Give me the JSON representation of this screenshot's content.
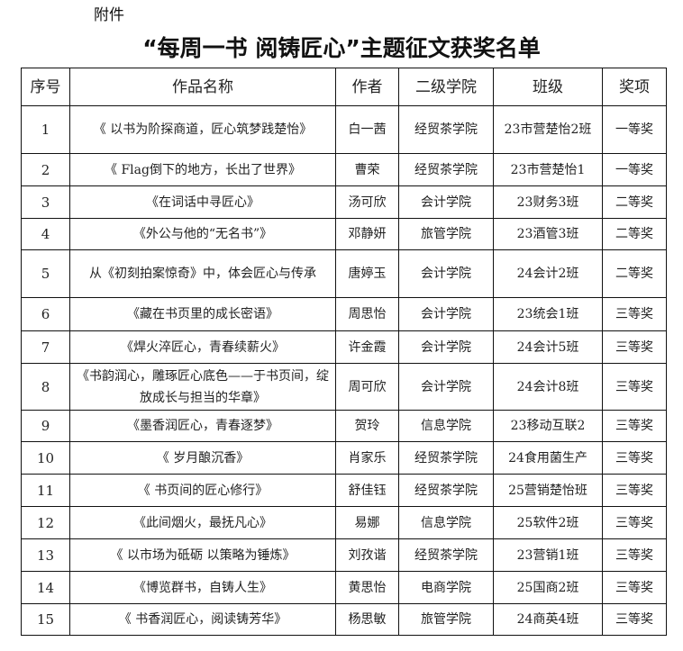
{
  "attachment_label": "附件",
  "title": "“每周一书 阅铸匠心”主题征文获奖名单",
  "headers": [
    "序号",
    "作品名称",
    "作者",
    "二级学院",
    "班级",
    "奖项"
  ],
  "rows": [
    [
      "1",
      "《 以书为阶探商道，匠心筑梦践楚怡》",
      "白一茜",
      "经贸茶学院",
      "23市营楚怡2班",
      "一等奖"
    ],
    [
      "2",
      "《 Flag倒下的地方，长出了世界》",
      "曹荣",
      "经贸茶学院",
      "23市营楚怡1",
      "一等奖"
    ],
    [
      "3",
      "《在词话中寻匠心》",
      "汤可欣",
      "会计学院",
      "23财务3班",
      "二等奖"
    ],
    [
      "4",
      "《外公与他的“无名书”》",
      "邓静妍",
      "旅管学院",
      "23酒管3班",
      "二等奖"
    ],
    [
      "5",
      "从《初刻拍案惊奇》中，体会匠心与传承",
      "唐婷玉",
      "会计学院",
      "24会计2班",
      "二等奖"
    ],
    [
      "6",
      "《藏在书页里的成长密语》",
      "周思怡",
      "会计学院",
      "23统会1班",
      "三等奖"
    ],
    [
      "7",
      "《焊火淬匠心，青春续薪火》",
      "许金霞",
      "会计学院",
      "24会计5班",
      "三等奖"
    ],
    [
      "8",
      "《书韵润心，雕琢匠心底色——于书页间，绽放成长与担当的华章》",
      "周可欣",
      "会计学院",
      "24会计8班",
      "三等奖"
    ],
    [
      "9",
      "《墨香润匠心，青春逐梦》",
      "贺玲",
      "信息学院",
      "23移动互联2",
      "三等奖"
    ],
    [
      "10",
      "《 岁月酿沉香》",
      "肖家乐",
      "经贸茶学院",
      "24食用菌生产",
      "三等奖"
    ],
    [
      "11",
      "《 书页间的匠心修行》",
      "舒佳钰",
      "经贸茶学院",
      "25营销楚怡班",
      "三等奖"
    ],
    [
      "12",
      "《此间烟火，最抚凡心》",
      "易娜",
      "信息学院",
      "25软件2班",
      "三等奖"
    ],
    [
      "13",
      "《 以市场为砥砺 以策略为锤炼》",
      "刘孜谐",
      "经贸茶学院",
      "23营销1班",
      "三等奖"
    ],
    [
      "14",
      "《博览群书，自铸人生》",
      "黄思怡",
      "电商学院",
      "25国商2班",
      "三等奖"
    ],
    [
      "15",
      "《 书香润匠心，阅读铸芳华》",
      "杨思敏",
      "旅管学院",
      "24商英4班",
      "三等奖"
    ]
  ]
}
